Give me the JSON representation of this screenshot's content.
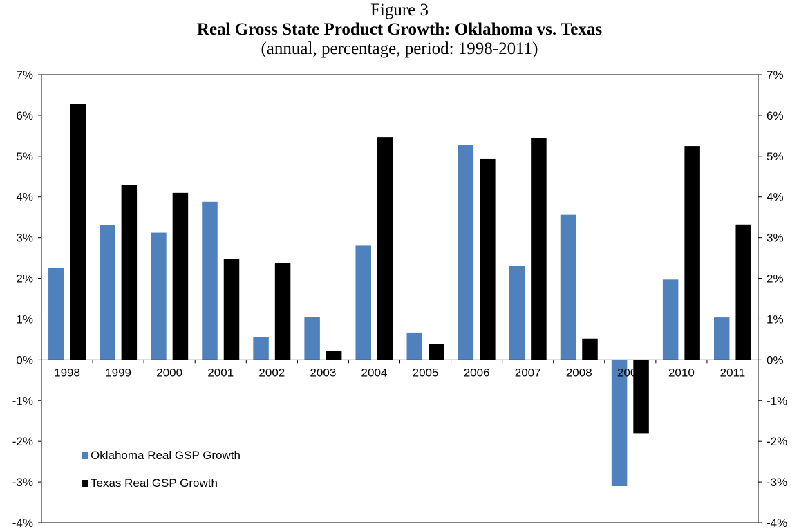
{
  "figure_label": "Figure 3",
  "chart_data": {
    "type": "bar",
    "title": "Real Gross State Product Growth: Oklahoma vs. Texas",
    "subtitle": "(annual, percentage, period: 1998-2011)",
    "categories": [
      "1998",
      "1999",
      "2000",
      "2001",
      "2002",
      "2003",
      "2004",
      "2005",
      "2006",
      "2007",
      "2008",
      "2009",
      "2010",
      "2011"
    ],
    "series": [
      {
        "name": "Oklahoma Real GSP Growth",
        "color": "#4F81BD",
        "values": [
          2.25,
          3.3,
          3.12,
          3.88,
          0.56,
          1.05,
          2.8,
          0.67,
          5.28,
          2.3,
          3.56,
          -3.1,
          1.97,
          1.04
        ]
      },
      {
        "name": "Texas Real GSP Growth",
        "color": "#000000",
        "values": [
          6.28,
          4.3,
          4.1,
          2.48,
          2.38,
          0.22,
          5.47,
          0.38,
          4.93,
          5.45,
          0.52,
          -1.8,
          5.25,
          3.32
        ]
      }
    ],
    "ylim": [
      -4,
      7
    ],
    "yticks": [
      "-4%",
      "-3%",
      "-2%",
      "-1%",
      "0%",
      "1%",
      "2%",
      "3%",
      "4%",
      "5%",
      "6%",
      "7%"
    ],
    "secondary_yticks": [
      "-4%",
      "-3%",
      "-2%",
      "-1%",
      "0%",
      "1%",
      "2%",
      "3%",
      "4%",
      "5%",
      "6%",
      "7%"
    ],
    "grid": false,
    "legend_position": "bottom-left"
  }
}
